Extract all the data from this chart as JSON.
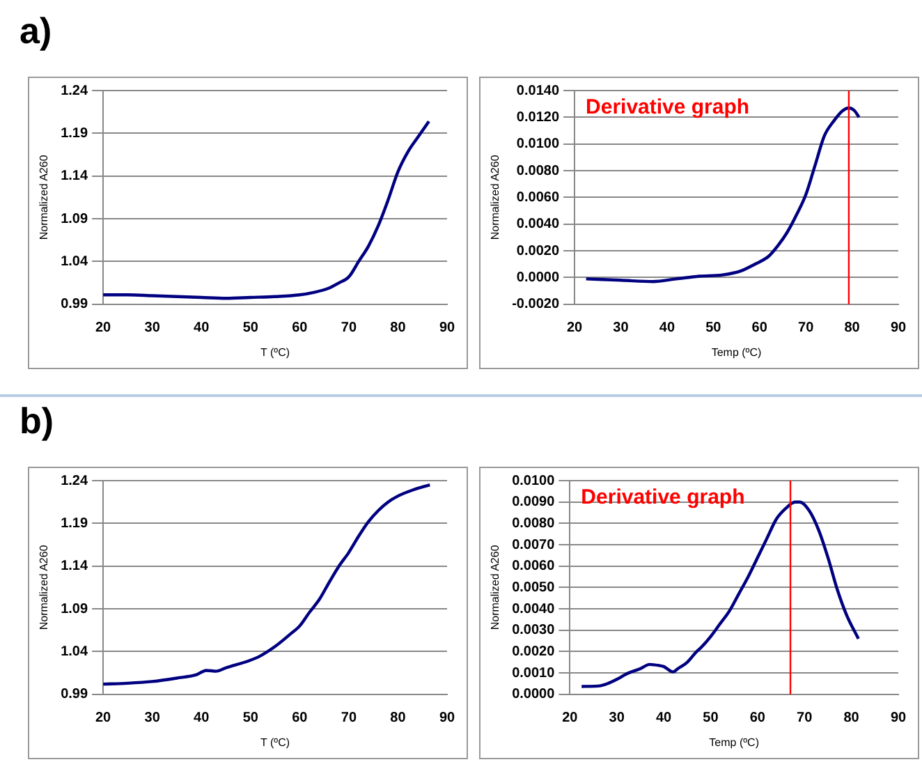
{
  "chart_data": [
    {
      "type": "line",
      "title": "a)",
      "xlabel": "T (ºC)",
      "ylabel": "Normalized A260",
      "xlim": [
        20,
        90
      ],
      "xticks": [
        20,
        30,
        40,
        50,
        60,
        70,
        80,
        90
      ],
      "ylim": [
        0.99,
        1.24
      ],
      "yticks": [
        0.99,
        1.04,
        1.09,
        1.14,
        1.19,
        1.24
      ],
      "grid": "y",
      "marker": "none",
      "legend": false,
      "series": [
        {
          "color": "#000080",
          "x": [
            20,
            25,
            30,
            35,
            40,
            45,
            50,
            55,
            60,
            63,
            66,
            68,
            70,
            72,
            74,
            76,
            78,
            80,
            82,
            84,
            86.3
          ],
          "values": [
            1.001,
            1.001,
            1.0,
            0.999,
            0.998,
            0.997,
            0.998,
            0.999,
            1.001,
            1.004,
            1.009,
            1.015,
            1.022,
            1.04,
            1.058,
            1.082,
            1.112,
            1.145,
            1.168,
            1.185,
            1.204
          ]
        }
      ]
    },
    {
      "type": "line",
      "xlabel": "Temp (ºC)",
      "ylabel": "Normalized A260",
      "annotations": [
        "Derivative graph"
      ],
      "xlim": [
        20,
        90
      ],
      "xticks": [
        20,
        30,
        40,
        50,
        60,
        70,
        80,
        90
      ],
      "ylim": [
        -0.002,
        0.014
      ],
      "yticks": [
        {
          "value": -0.002,
          "label": "-0.0020"
        },
        {
          "value": 0,
          "label": "0.0000"
        },
        {
          "value": 0.002,
          "label": "0.0020"
        },
        {
          "value": 0.004,
          "label": "0.0040"
        },
        {
          "value": 0.006,
          "label": "0.0060"
        },
        {
          "value": 0.008,
          "label": "0.0080"
        },
        {
          "value": 0.01,
          "label": "0.0100"
        },
        {
          "value": 0.012,
          "label": "0.0120"
        },
        {
          "value": 0.014,
          "label": "0.0140"
        }
      ],
      "grid": "y",
      "marker": "none",
      "legend": false,
      "ref_lines": [
        {
          "axis": "x",
          "value": 79.3,
          "color": "#ff0000"
        }
      ],
      "series": [
        {
          "color": "#000080",
          "x": [
            22.5,
            30,
            37,
            42,
            47,
            52,
            56,
            59,
            62,
            64,
            66,
            68,
            70,
            72,
            74,
            76,
            78,
            79.3,
            80.5,
            81.5
          ],
          "values": [
            -0.0001,
            -0.0002,
            -0.0003,
            -0.0001,
            0.0001,
            0.0002,
            0.0005,
            0.001,
            0.0016,
            0.0024,
            0.0034,
            0.0047,
            0.0062,
            0.0084,
            0.0106,
            0.0117,
            0.0125,
            0.0127,
            0.0125,
            0.012
          ]
        }
      ]
    },
    {
      "type": "line",
      "title": "b)",
      "xlabel": "T (ºC)",
      "ylabel": "Normalized A260",
      "xlim": [
        20,
        90
      ],
      "xticks": [
        20,
        30,
        40,
        50,
        60,
        70,
        80,
        90
      ],
      "ylim": [
        0.99,
        1.24
      ],
      "yticks": [
        0.99,
        1.04,
        1.09,
        1.14,
        1.19,
        1.24
      ],
      "grid": "y",
      "marker": "none",
      "legend": false,
      "series": [
        {
          "color": "#000080",
          "x": [
            20,
            25,
            30,
            35,
            39,
            41,
            43,
            45,
            50,
            52,
            55,
            58,
            60,
            62,
            64,
            66,
            68,
            70,
            72,
            74,
            76,
            78,
            80,
            83,
            86.5
          ],
          "values": [
            1.002,
            1.003,
            1.005,
            1.009,
            1.013,
            1.018,
            1.017,
            1.021,
            1.03,
            1.035,
            1.046,
            1.06,
            1.07,
            1.086,
            1.101,
            1.121,
            1.14,
            1.156,
            1.175,
            1.192,
            1.205,
            1.215,
            1.222,
            1.229,
            1.235
          ]
        }
      ]
    },
    {
      "type": "line",
      "xlabel": "Temp (ºC)",
      "ylabel": "Normalized A260",
      "annotations": [
        "Derivative graph"
      ],
      "xlim": [
        20,
        90
      ],
      "xticks": [
        20,
        30,
        40,
        50,
        60,
        70,
        80,
        90
      ],
      "ylim": [
        0,
        0.01
      ],
      "yticks": [
        {
          "value": 0,
          "label": "0.0000"
        },
        {
          "value": 0.001,
          "label": "0.0010"
        },
        {
          "value": 0.002,
          "label": "0.0020"
        },
        {
          "value": 0.003,
          "label": "0.0030"
        },
        {
          "value": 0.004,
          "label": "0.0040"
        },
        {
          "value": 0.005,
          "label": "0.0050"
        },
        {
          "value": 0.006,
          "label": "0.0060"
        },
        {
          "value": 0.007,
          "label": "0.0070"
        },
        {
          "value": 0.008,
          "label": "0.0080"
        },
        {
          "value": 0.009,
          "label": "0.0090"
        },
        {
          "value": 0.01,
          "label": "0.0100"
        }
      ],
      "grid": "y",
      "marker": "none",
      "legend": false,
      "ref_lines": [
        {
          "axis": "x",
          "value": 67,
          "color": "#ff0000"
        }
      ],
      "series": [
        {
          "color": "#000080",
          "x": [
            22.5,
            26,
            28,
            30,
            32,
            35,
            37,
            39,
            40,
            42,
            43,
            45,
            47,
            48,
            50,
            52,
            54,
            56,
            58,
            60,
            62,
            64,
            66,
            68,
            69,
            71,
            73,
            75,
            77,
            79,
            81.5
          ],
          "values": [
            0.00037,
            0.00039,
            0.0005,
            0.0007,
            0.00095,
            0.0012,
            0.0014,
            0.00135,
            0.0013,
            0.00105,
            0.0012,
            0.0015,
            0.002,
            0.0022,
            0.0027,
            0.0033,
            0.0039,
            0.0047,
            0.0055,
            0.0064,
            0.0073,
            0.0082,
            0.0087,
            0.009,
            0.009,
            0.0086,
            0.0077,
            0.0064,
            0.0049,
            0.0037,
            0.0026
          ]
        }
      ]
    }
  ]
}
